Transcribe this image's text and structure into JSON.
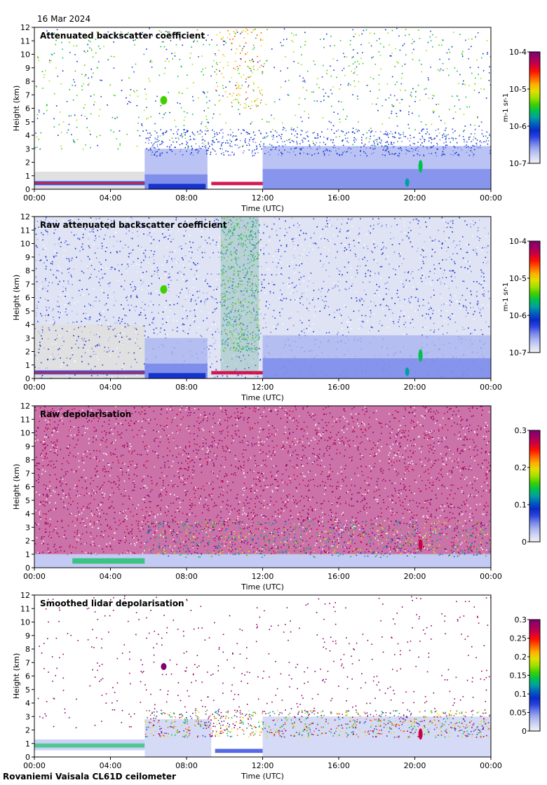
{
  "date": "16 Mar 2024",
  "footer": "Rovaniemi Vaisala CL61D ceilometer",
  "chart_data": [
    {
      "type": "heatmap",
      "title": "Attenuated backscatter coefficient",
      "xlabel": "Time (UTC)",
      "ylabel": "Height (km)",
      "x_ticks": [
        "00:00",
        "04:00",
        "08:00",
        "12:00",
        "16:00",
        "20:00",
        "00:00"
      ],
      "y_ticks": [
        "0",
        "1",
        "2",
        "3",
        "4",
        "5",
        "6",
        "7",
        "8",
        "9",
        "10",
        "11",
        "12"
      ],
      "ylim": [
        0,
        12
      ],
      "colorbar": {
        "scale": "log",
        "unit_label": "m-1 sr-1",
        "ticks": [
          "10-7",
          "10-6",
          "10-5",
          "10-4"
        ],
        "range": [
          1e-07,
          0.0001
        ]
      }
    },
    {
      "type": "heatmap",
      "title": "Raw attenuated backscatter coefficient",
      "xlabel": "Time (UTC)",
      "ylabel": "Height (km)",
      "x_ticks": [
        "00:00",
        "04:00",
        "08:00",
        "12:00",
        "16:00",
        "20:00",
        "00:00"
      ],
      "y_ticks": [
        "0",
        "1",
        "2",
        "3",
        "4",
        "5",
        "6",
        "7",
        "8",
        "9",
        "10",
        "11",
        "12"
      ],
      "ylim": [
        0,
        12
      ],
      "colorbar": {
        "scale": "log",
        "unit_label": "m-1 sr-1",
        "ticks": [
          "10-7",
          "10-6",
          "10-5",
          "10-4"
        ],
        "range": [
          1e-07,
          0.0001
        ]
      }
    },
    {
      "type": "heatmap",
      "title": "Raw depolarisation",
      "xlabel": "Time (UTC)",
      "ylabel": "Height (km)",
      "x_ticks": [
        "00:00",
        "04:00",
        "08:00",
        "12:00",
        "16:00",
        "20:00",
        "00:00"
      ],
      "y_ticks": [
        "0",
        "1",
        "2",
        "3",
        "4",
        "5",
        "6",
        "7",
        "8",
        "9",
        "10",
        "11",
        "12"
      ],
      "ylim": [
        0,
        12
      ],
      "colorbar": {
        "scale": "linear",
        "unit_label": "",
        "ticks": [
          "0",
          "0.1",
          "0.2",
          "0.3"
        ],
        "range": [
          0,
          0.3
        ]
      }
    },
    {
      "type": "heatmap",
      "title": "Smoothed lidar depolarisation",
      "xlabel": "Time (UTC)",
      "ylabel": "Height (km)",
      "x_ticks": [
        "00:00",
        "04:00",
        "08:00",
        "12:00",
        "16:00",
        "20:00",
        "00:00"
      ],
      "y_ticks": [
        "0",
        "1",
        "2",
        "3",
        "4",
        "5",
        "6",
        "7",
        "8",
        "9",
        "10",
        "11",
        "12"
      ],
      "ylim": [
        0,
        12
      ],
      "colorbar": {
        "scale": "linear",
        "unit_label": "",
        "ticks": [
          "0",
          "0.05",
          "0.1",
          "0.15",
          "0.2",
          "0.25",
          "0.3"
        ],
        "range": [
          0,
          0.3
        ]
      }
    }
  ],
  "colors": {
    "colormap": [
      "#f2f2f2",
      "#d0d6f5",
      "#a9b4f0",
      "#7282ea",
      "#2a44e0",
      "#0a2ac8",
      "#0060c0",
      "#00a0a0",
      "#00c050",
      "#40d000",
      "#a0e000",
      "#e0e000",
      "#ffb000",
      "#ff6000",
      "#ff1000",
      "#d00040",
      "#a00060",
      "#800070"
    ]
  }
}
